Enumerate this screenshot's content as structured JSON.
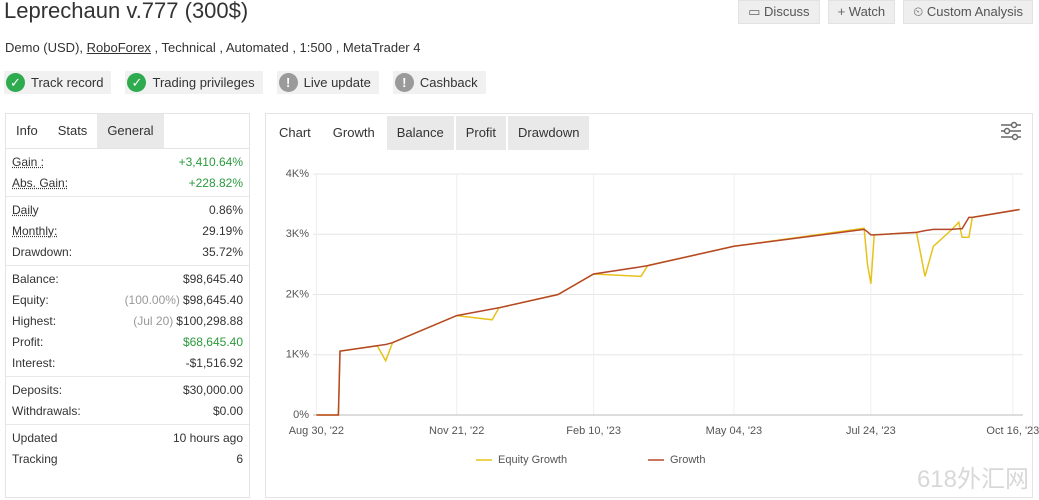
{
  "header": {
    "title": "Leprechaun v.777 (300$)",
    "account": "Demo (USD), ",
    "broker": "RoboForex",
    "details": " , Technical , Automated , 1:500 , MetaTrader 4",
    "buttons": [
      "Discuss",
      "Watch",
      "Custom Analysis"
    ],
    "badges": [
      {
        "label": "Track record",
        "color": "#2eaa4f"
      },
      {
        "label": "Trading privileges",
        "color": "#2eaa4f"
      },
      {
        "label": "Live update",
        "color": "#9a9a9a"
      },
      {
        "label": "Cashback",
        "color": "#9a9a9a"
      }
    ]
  },
  "side_tabs": [
    "Info",
    "Stats",
    "General"
  ],
  "stats": [
    {
      "rows": [
        {
          "label": "Gain :",
          "value": "+3,410.64%",
          "color": "#2a9a3c",
          "underline": true
        },
        {
          "label": "Abs. Gain:",
          "value": "+228.82%",
          "color": "#2a9a3c",
          "underline": true
        }
      ]
    },
    {
      "rows": [
        {
          "label": "Daily",
          "value": "0.86%",
          "underline": true
        },
        {
          "label": "Monthly:",
          "value": "29.19%",
          "underline": true
        },
        {
          "label": "Drawdown:",
          "value": "35.72%"
        }
      ]
    },
    {
      "rows": [
        {
          "label": "Balance:",
          "value": "$98,645.40"
        },
        {
          "label": "Equity:",
          "note": "(100.00%)",
          "value": "$98,645.40"
        },
        {
          "label": "Highest:",
          "note": "(Jul 20)",
          "value": "$100,298.88"
        },
        {
          "label": "Profit:",
          "value": "$68,645.40",
          "color": "#2a9a3c"
        },
        {
          "label": "Interest:",
          "value": "-$1,516.92"
        }
      ]
    },
    {
      "rows": [
        {
          "label": "Deposits:",
          "value": "$30,000.00"
        },
        {
          "label": "Withdrawals:",
          "value": "$0.00"
        }
      ]
    },
    {
      "rows": [
        {
          "label": "Updated",
          "value": "10 hours ago"
        },
        {
          "label": "Tracking",
          "value": "6"
        }
      ]
    }
  ],
  "chart_tabs": [
    "Chart",
    "Growth",
    "Balance",
    "Profit",
    "Drawdown"
  ],
  "watermark": "618外汇网",
  "chart_data": {
    "type": "line",
    "x": [
      "2022-08-30",
      "2022-09-12",
      "2022-09-13",
      "2022-10-05",
      "2022-10-10",
      "2022-10-14",
      "2022-11-21",
      "2022-12-12",
      "2022-12-16",
      "2023-01-20",
      "2023-02-10",
      "2023-03-10",
      "2023-03-14",
      "2023-05-04",
      "2023-07-20",
      "2023-07-22",
      "2023-07-24",
      "2023-07-26",
      "2023-08-20",
      "2023-08-25",
      "2023-08-30",
      "2023-09-10",
      "2023-09-14",
      "2023-09-16",
      "2023-09-20",
      "2023-09-22",
      "2023-10-20"
    ],
    "series": [
      {
        "name": "Equity Growth",
        "color": "#e8c21c",
        "values": [
          0,
          0,
          1060,
          1150,
          900,
          1200,
          1650,
          1580,
          1780,
          2000,
          2340,
          2300,
          2480,
          2800,
          3100,
          2500,
          2180,
          2990,
          3030,
          2300,
          2800,
          3080,
          3200,
          2950,
          2950,
          3280,
          3410
        ]
      },
      {
        "name": "Growth",
        "color": "#b5482a",
        "values": [
          0,
          0,
          1060,
          1150,
          1170,
          1200,
          1650,
          1760,
          1780,
          2000,
          2340,
          2460,
          2480,
          2800,
          3080,
          3040,
          2990,
          2990,
          3030,
          3060,
          3080,
          3080,
          3090,
          3090,
          3280,
          3280,
          3410
        ]
      }
    ],
    "xlim": [
      "2022-08-28",
      "2023-10-22"
    ],
    "xticks": [
      {
        "value": "2022-08-30",
        "label": "Aug 30, '22"
      },
      {
        "value": "2022-11-21",
        "label": "Nov 21, '22"
      },
      {
        "value": "2023-02-10",
        "label": "Feb 10, '23"
      },
      {
        "value": "2023-05-04",
        "label": "May 04, '23"
      },
      {
        "value": "2023-07-24",
        "label": "Jul 24, '23"
      },
      {
        "value": "2023-10-16",
        "label": "Oct 16, '23"
      }
    ],
    "ylim": [
      0,
      4000
    ],
    "yticks": [
      {
        "value": 0,
        "label": "0%"
      },
      {
        "value": 1000,
        "label": "1K%"
      },
      {
        "value": 2000,
        "label": "2K%"
      },
      {
        "value": 3000,
        "label": "3K%"
      },
      {
        "value": 4000,
        "label": "4K%"
      }
    ],
    "grid": true
  }
}
